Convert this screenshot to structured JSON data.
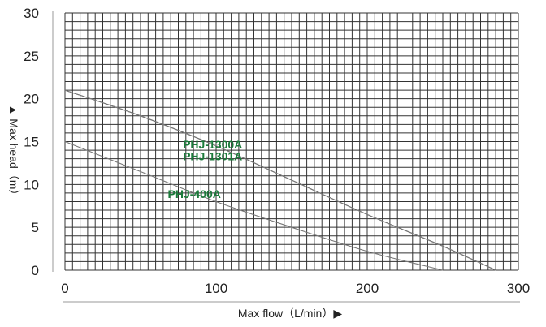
{
  "chart_data": {
    "type": "line",
    "title": "",
    "xlabel": "Max flow（L/min）▶",
    "ylabel": "▲ Max head（m）",
    "xlim": [
      0,
      300
    ],
    "ylim": [
      0,
      30
    ],
    "x_ticks": [
      0,
      100,
      200,
      300
    ],
    "y_ticks": [
      0,
      5,
      10,
      15,
      20,
      25,
      30
    ],
    "grid": true,
    "colors": {
      "grid": "#333333",
      "curve": "#777777",
      "label": "#1a7a3a",
      "axis": "#999999"
    },
    "series": [
      {
        "name": "PHJ-1300A",
        "x": [
          0,
          50,
          100,
          150,
          200,
          250,
          285
        ],
        "y": [
          21,
          18,
          14.5,
          10.5,
          6.5,
          2.8,
          0
        ]
      },
      {
        "name": "PHJ-1301A",
        "x": [
          0,
          50,
          100,
          150,
          200,
          250,
          285
        ],
        "y": [
          21,
          18,
          14.5,
          10.5,
          6.5,
          2.8,
          0
        ]
      },
      {
        "name": "PHJ-400A",
        "x": [
          0,
          50,
          100,
          150,
          200,
          250
        ],
        "y": [
          15,
          11.5,
          8,
          5,
          2.2,
          0
        ]
      }
    ],
    "annotations": [
      {
        "text": "PHJ-1300A",
        "x": 78,
        "y": 14.2
      },
      {
        "text": "PHJ-1301A",
        "x": 78,
        "y": 12.8
      },
      {
        "text": "PHJ-400A",
        "x": 68,
        "y": 8.4
      }
    ]
  }
}
